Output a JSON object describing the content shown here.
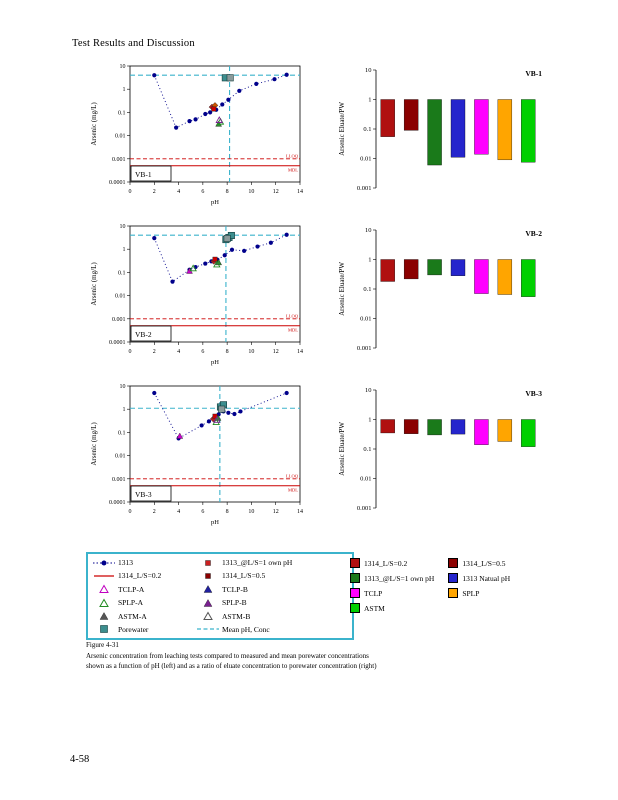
{
  "page": {
    "header": "Test Results and Discussion",
    "page_number": "4-58"
  },
  "figure": {
    "label": "Figure 4-31",
    "caption": "Arsenic concentration from leaching tests compared to measured and mean porewater concentrations shown as a function of pH (left) and as a ratio of eluate concentration to porewater concentration (right)"
  },
  "chart_data": [
    {
      "type": "scatter",
      "title": "VB-1",
      "xlabel": "pH",
      "ylabel": "Arsenic (mg/L)",
      "xlim": [
        0,
        14
      ],
      "ylim": [
        0.0001,
        10
      ],
      "xticks": [
        0,
        2,
        4,
        6,
        8,
        10,
        12,
        14
      ],
      "yticks": [
        {
          "value": 10,
          "label": "10"
        },
        {
          "value": 1,
          "label": "1"
        },
        {
          "value": 0.1,
          "label": "0.1"
        },
        {
          "value": 0.01,
          "label": "0.01"
        },
        {
          "value": 0.001,
          "label": "0.001"
        },
        {
          "value": 0.0001,
          "label": "0.0001"
        }
      ],
      "lloq": 0.001,
      "lloq_label": "LLOQ",
      "mdl": 0.0005,
      "mdl_label": "MDL",
      "mean_ph": 8.2,
      "mean_conc": 4,
      "mean_color": "#3bb3cc",
      "series": [
        {
          "name": "1313",
          "color": "#00008b",
          "x": [
            2,
            3.8,
            4.9,
            5.4,
            6.2,
            6.6,
            7.1,
            7.6,
            8.1,
            9.0,
            10.4,
            11.9,
            12.9
          ],
          "y": [
            4,
            0.022,
            0.042,
            0.05,
            0.085,
            0.1,
            0.13,
            0.22,
            0.35,
            0.85,
            1.7,
            2.7,
            4.2
          ]
        }
      ],
      "points": [
        {
          "x": 6.75,
          "y": 0.17,
          "marker": "diamond",
          "color": "#b22222"
        },
        {
          "x": 7.0,
          "y": 0.2,
          "marker": "diamond",
          "color": "#cc5500"
        },
        {
          "x": 6.9,
          "y": 0.14,
          "marker": "square",
          "color": "#cc0000"
        },
        {
          "x": 7.3,
          "y": 0.032,
          "marker": "triangle",
          "color": "#2e8b2e"
        },
        {
          "x": 7.45,
          "y": 0.04,
          "marker": "triangle-open",
          "color": "#228b22"
        },
        {
          "x": 7.35,
          "y": 0.047,
          "marker": "triangle-open",
          "color": "#7a2090"
        },
        {
          "x": 7.85,
          "y": 3.1,
          "marker": "square-large",
          "color": "#3c8e8e"
        },
        {
          "x": 8.25,
          "y": 3.1,
          "marker": "square-large",
          "color": "#8a9a9a"
        }
      ]
    },
    {
      "type": "bar",
      "title": "VB-1",
      "ylabel": "Arsenic Eluate/PW",
      "ylim": [
        0.001,
        10
      ],
      "yticks": [
        {
          "value": 10,
          "label": "10"
        },
        {
          "value": 1,
          "label": "1"
        },
        {
          "value": 0.1,
          "label": "0.1"
        },
        {
          "value": 0.01,
          "label": "0.01"
        },
        {
          "value": 0.001,
          "label": "0.001"
        }
      ],
      "bar_top": 1,
      "categories": [
        "1314_L/S=0.2",
        "1314_L/S=0.5",
        "1313_@L/S=1 own pH",
        "1313 Natual pH",
        "TCLP",
        "SPLP",
        "ASTM"
      ],
      "values": [
        0.055,
        0.09,
        0.006,
        0.011,
        0.014,
        0.009,
        0.0075
      ],
      "colors": [
        "#b01010",
        "#8b0000",
        "#1a7a1a",
        "#2525cc",
        "#ff00ff",
        "#ffa500",
        "#00d000"
      ]
    },
    {
      "type": "scatter",
      "title": "VB-2",
      "xlabel": "pH",
      "ylabel": "Arsenic (mg/L)",
      "xlim": [
        0,
        14
      ],
      "ylim": [
        0.0001,
        10
      ],
      "xticks": [
        0,
        2,
        4,
        6,
        8,
        10,
        12,
        14
      ],
      "yticks": [
        {
          "value": 10,
          "label": "10"
        },
        {
          "value": 1,
          "label": "1"
        },
        {
          "value": 0.1,
          "label": "0.1"
        },
        {
          "value": 0.01,
          "label": "0.01"
        },
        {
          "value": 0.001,
          "label": "0.001"
        },
        {
          "value": 0.0001,
          "label": "0.0001"
        }
      ],
      "lloq": 0.001,
      "lloq_label": "LLOQ",
      "mdl": 0.0005,
      "mdl_label": "MDL",
      "mean_ph": 7.9,
      "mean_conc": 4,
      "mean_color": "#3bb3cc",
      "series": [
        {
          "name": "1313",
          "color": "#00008b",
          "x": [
            2,
            3.5,
            4.9,
            5.4,
            6.2,
            6.7,
            7.2,
            7.8,
            8.4,
            9.4,
            10.5,
            11.6,
            12.9
          ],
          "y": [
            3,
            0.04,
            0.13,
            0.17,
            0.24,
            0.3,
            0.35,
            0.55,
            0.95,
            0.85,
            1.3,
            1.9,
            4.2
          ]
        }
      ],
      "points": [
        {
          "x": 4.9,
          "y": 0.115,
          "marker": "triangle",
          "color": "#cc00cc"
        },
        {
          "x": 5.2,
          "y": 0.15,
          "marker": "triangle-open",
          "color": "#228b22"
        },
        {
          "x": 6.9,
          "y": 0.3,
          "marker": "diamond",
          "color": "#b22222"
        },
        {
          "x": 7.0,
          "y": 0.37,
          "marker": "square",
          "color": "#cc0000"
        },
        {
          "x": 7.15,
          "y": 0.22,
          "marker": "triangle-open",
          "color": "#228b22"
        },
        {
          "x": 7.3,
          "y": 0.27,
          "marker": "triangle",
          "color": "#2e8b2e"
        },
        {
          "x": 7.9,
          "y": 2.6,
          "marker": "square-large",
          "color": "#3c8e8e"
        },
        {
          "x": 8.15,
          "y": 3.2,
          "marker": "square-large",
          "color": "#3c8e8e"
        },
        {
          "x": 8.35,
          "y": 3.9,
          "marker": "square-large",
          "color": "#3c8e8e"
        },
        {
          "x": 8.0,
          "y": 2.9,
          "marker": "square-large",
          "color": "#8a9a9a"
        }
      ]
    },
    {
      "type": "bar",
      "title": "VB-2",
      "ylabel": "Arsenic Eluate/PW",
      "ylim": [
        0.001,
        10
      ],
      "yticks": [
        {
          "value": 10,
          "label": "10"
        },
        {
          "value": 1,
          "label": "1"
        },
        {
          "value": 0.1,
          "label": "0.1"
        },
        {
          "value": 0.01,
          "label": "0.01"
        },
        {
          "value": 0.001,
          "label": "0.001"
        }
      ],
      "bar_top": 1,
      "categories": [
        "1314_L/S=0.2",
        "1314_L/S=0.5",
        "1313_@L/S=1 own pH",
        "1313 Natual pH",
        "TCLP",
        "SPLP",
        "ASTM"
      ],
      "values": [
        0.18,
        0.22,
        0.3,
        0.28,
        0.07,
        0.065,
        0.055
      ],
      "colors": [
        "#b01010",
        "#8b0000",
        "#1a7a1a",
        "#2525cc",
        "#ff00ff",
        "#ffa500",
        "#00d000"
      ]
    },
    {
      "type": "scatter",
      "title": "VB-3",
      "xlabel": "pH",
      "ylabel": "Arsenic (mg/L)",
      "xlim": [
        0,
        14
      ],
      "ylim": [
        0.0001,
        10
      ],
      "xticks": [
        0,
        2,
        4,
        6,
        8,
        10,
        12,
        14
      ],
      "yticks": [
        {
          "value": 10,
          "label": "10"
        },
        {
          "value": 1,
          "label": "1"
        },
        {
          "value": 0.1,
          "label": "0.1"
        },
        {
          "value": 0.01,
          "label": "0.01"
        },
        {
          "value": 0.001,
          "label": "0.001"
        },
        {
          "value": 0.0001,
          "label": "0.0001"
        }
      ],
      "lloq": 0.001,
      "lloq_label": "LLOQ",
      "mdl": 0.0005,
      "mdl_label": "MDL",
      "mean_ph": 7.4,
      "mean_conc": 1.1,
      "mean_color": "#3bb3cc",
      "series": [
        {
          "name": "1313",
          "color": "#00008b",
          "x": [
            2,
            4.0,
            5.9,
            6.5,
            7.0,
            7.3,
            7.7,
            8.1,
            8.6,
            9.1,
            12.9
          ],
          "y": [
            5,
            0.055,
            0.2,
            0.3,
            0.45,
            0.6,
            0.8,
            0.7,
            0.62,
            0.8,
            5
          ]
        }
      ],
      "points": [
        {
          "x": 4.1,
          "y": 0.07,
          "marker": "triangle",
          "color": "#cc00cc"
        },
        {
          "x": 6.85,
          "y": 0.38,
          "marker": "diamond",
          "color": "#b22222"
        },
        {
          "x": 7.0,
          "y": 0.5,
          "marker": "square",
          "color": "#cc0000"
        },
        {
          "x": 7.1,
          "y": 0.28,
          "marker": "triangle-open",
          "color": "#228b22"
        },
        {
          "x": 7.25,
          "y": 0.42,
          "marker": "triangle",
          "color": "#2e8b2e"
        },
        {
          "x": 7.15,
          "y": 0.35,
          "marker": "triangle-open",
          "color": "#7a2090"
        },
        {
          "x": 7.45,
          "y": 1.25,
          "marker": "square-large",
          "color": "#3c8e8e"
        },
        {
          "x": 7.7,
          "y": 1.55,
          "marker": "square-large",
          "color": "#3c8e8e"
        },
        {
          "x": 7.55,
          "y": 1.0,
          "marker": "square-large",
          "color": "#8a9a9a"
        }
      ]
    },
    {
      "type": "bar",
      "title": "VB-3",
      "ylabel": "Arsenic Eluate/PW",
      "ylim": [
        0.001,
        10
      ],
      "yticks": [
        {
          "value": 10,
          "label": "10"
        },
        {
          "value": 1,
          "label": "1"
        },
        {
          "value": 0.1,
          "label": "0.1"
        },
        {
          "value": 0.01,
          "label": "0.01"
        },
        {
          "value": 0.001,
          "label": "0.001"
        }
      ],
      "bar_top": 1,
      "categories": [
        "1314_L/S=0.2",
        "1314_L/S=0.5",
        "1313_@L/S=1 own pH",
        "1313 Natual pH",
        "TCLP",
        "SPLP",
        "ASTM"
      ],
      "values": [
        0.35,
        0.33,
        0.3,
        0.32,
        0.14,
        0.18,
        0.12
      ],
      "colors": [
        "#b01010",
        "#8b0000",
        "#1a7a1a",
        "#2525cc",
        "#ff00ff",
        "#ffa500",
        "#00d000"
      ]
    }
  ],
  "legend": {
    "left": {
      "col1": [
        {
          "label": "1313",
          "type": "dot-line",
          "color": "#00008b"
        },
        {
          "label": "1314_L/S=0.2",
          "type": "line",
          "color": "#cc0000"
        },
        {
          "label": "TCLP-A",
          "type": "triangle-open",
          "color": "#c000c0"
        },
        {
          "label": "SPLP-A",
          "type": "triangle-open",
          "color": "#228b22"
        },
        {
          "label": "ASTM-A",
          "type": "triangle-filled",
          "color": "#555555"
        },
        {
          "label": "Porewater",
          "type": "square",
          "color": "#3c8e8e"
        }
      ],
      "col2": [
        {
          "label": "1313_@L/S=1 own pH",
          "type": "square-small",
          "color": "#cc2020"
        },
        {
          "label": "1314_L/S=0.5",
          "type": "square-small",
          "color": "#8b0000"
        },
        {
          "label": "TCLP-B",
          "type": "triangle-filled",
          "color": "#2020a0"
        },
        {
          "label": "SPLP-B",
          "type": "triangle-filled",
          "color": "#7a2090"
        },
        {
          "label": "ASTM-B",
          "type": "triangle-open",
          "color": "#555555"
        },
        {
          "label": "Mean pH, Conc",
          "type": "dash-line",
          "color": "#3bb3cc"
        }
      ]
    },
    "right": {
      "col1": [
        {
          "label": "1314_L/S=0.2",
          "color": "#b01010"
        },
        {
          "label": "1313_@L/S=1 own pH",
          "color": "#1a7a1a"
        },
        {
          "label": "TCLP",
          "color": "#ff00ff"
        },
        {
          "label": "ASTM",
          "color": "#00d000"
        }
      ],
      "col2": [
        {
          "label": "1314_L/S=0.5",
          "color": "#8b0000"
        },
        {
          "label": "1313 Natual pH",
          "color": "#2525cc"
        },
        {
          "label": "SPLP",
          "color": "#ffa500"
        }
      ]
    }
  }
}
